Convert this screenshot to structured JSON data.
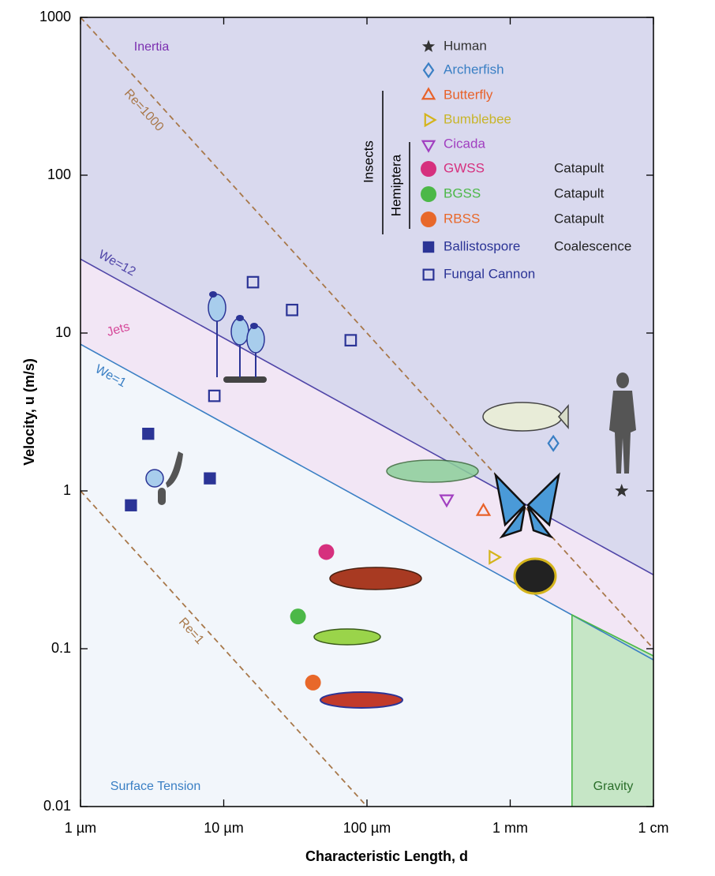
{
  "chart_data": {
    "type": "scatter",
    "x_label": "Characteristic Length, d",
    "y_label": "Velocity, u (m/s)",
    "xscale": "log",
    "yscale": "log",
    "xlim": [
      1e-06,
      0.01
    ],
    "ylim": [
      0.01,
      1000
    ],
    "xticks": [
      {
        "value": 1e-06,
        "label": "1 µm"
      },
      {
        "value": 1e-05,
        "label": "10 µm"
      },
      {
        "value": 0.0001,
        "label": "100 µm"
      },
      {
        "value": 0.001,
        "label": "1 mm"
      },
      {
        "value": 0.01,
        "label": "1 cm"
      }
    ],
    "yticks": [
      0.01,
      0.1,
      1,
      10,
      100,
      1000
    ],
    "lines": [
      {
        "name": "Re=1000",
        "color": "#a8784a",
        "dashed": true,
        "x": [
          1e-06,
          0.01
        ],
        "values": [
          1000,
          0.1
        ]
      },
      {
        "name": "Re=1",
        "color": "#a8784a",
        "dashed": true,
        "x": [
          1e-06,
          0.0001
        ],
        "values": [
          1,
          0.01
        ]
      },
      {
        "name": "We=12",
        "color": "#5046a8",
        "dashed": false,
        "x": [
          1e-06,
          0.01
        ],
        "values": [
          29.4,
          0.294
        ]
      },
      {
        "name": "We=1",
        "color": "#3a7fc4",
        "dashed": false,
        "x": [
          1e-06,
          0.01
        ],
        "values": [
          8.49,
          0.085
        ]
      },
      {
        "name": "Gravity boundary",
        "color": "#4cb848",
        "dashed": false,
        "x": [
          0.0027,
          0.0027,
          0.01
        ],
        "values": [
          0.01,
          0.164,
          0.09
        ]
      }
    ],
    "regions": [
      "Inertia",
      "Jets",
      "Surface Tension",
      "Gravity"
    ],
    "legend_groups": [
      "Insects",
      "Hemiptera"
    ],
    "series": [
      {
        "name": "Human",
        "color": "#333333",
        "marker": "star",
        "x": [
          0.006
        ],
        "values": [
          1
        ]
      },
      {
        "name": "Archerfish",
        "color": "#3a7fc4",
        "marker": "diamond",
        "x": [
          0.002
        ],
        "values": [
          2
        ]
      },
      {
        "name": "Butterfly",
        "color": "#e8622a",
        "marker": "triangle-up",
        "x": [
          0.00065
        ],
        "values": [
          0.74
        ]
      },
      {
        "name": "Bumblebee",
        "color": "#d4b41c",
        "marker": "triangle-right",
        "x": [
          0.00076
        ],
        "values": [
          0.38
        ]
      },
      {
        "name": "Cicada",
        "color": "#a13fc0",
        "marker": "triangle-down",
        "x": [
          0.00036
        ],
        "values": [
          0.89
        ]
      },
      {
        "name": "GWSS",
        "color": "#d6307e",
        "marker": "circle",
        "mechanism": "Catapult",
        "x": [
          5.2e-05
        ],
        "values": [
          0.41
        ]
      },
      {
        "name": "BGSS",
        "color": "#4cb848",
        "marker": "circle",
        "mechanism": "Catapult",
        "x": [
          3.3e-05
        ],
        "values": [
          0.16
        ]
      },
      {
        "name": "RBSS",
        "color": "#e8682a",
        "marker": "circle",
        "mechanism": "Catapult",
        "x": [
          4.2e-05
        ],
        "values": [
          0.061
        ]
      },
      {
        "name": "Ballistospore",
        "color": "#2b3496",
        "marker": "square",
        "mechanism": "Coalescence",
        "x": [
          2.25e-06,
          2.97e-06,
          8e-06
        ],
        "values": [
          0.81,
          2.3,
          1.2
        ]
      },
      {
        "name": "Fungal Cannon",
        "color": "#2b3496",
        "marker": "square-open",
        "x": [
          1.6e-05,
          3e-05,
          7.7e-05,
          8.6e-06
        ],
        "values": [
          21,
          14,
          9,
          4
        ]
      }
    ]
  }
}
